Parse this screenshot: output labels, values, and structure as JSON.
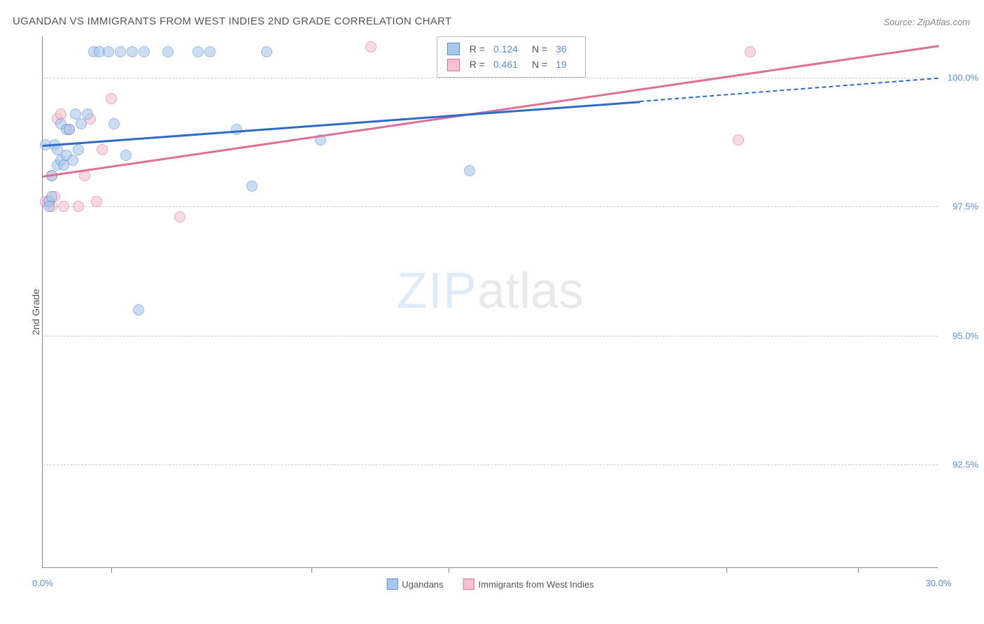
{
  "chart": {
    "type": "scatter",
    "title": "UGANDAN VS IMMIGRANTS FROM WEST INDIES 2ND GRADE CORRELATION CHART",
    "source": "Source: ZipAtlas.com",
    "y_axis_label": "2nd Grade",
    "background_color": "#ffffff",
    "grid_color": "#cccccc",
    "axis_color": "#888888",
    "text_color": "#555555",
    "tick_label_color": "#5b8dd6",
    "title_fontsize": 15,
    "label_fontsize": 14,
    "tick_fontsize": 13,
    "xlim": [
      0.0,
      30.0
    ],
    "ylim": [
      90.5,
      100.8
    ],
    "x_ticks": [
      0.0,
      30.0
    ],
    "x_tick_labels": [
      "0.0%",
      "30.0%"
    ],
    "x_minor_ticks": [
      2.3,
      9.0,
      13.6,
      22.9,
      27.3
    ],
    "y_ticks": [
      92.5,
      95.0,
      97.5,
      100.0
    ],
    "y_tick_labels": [
      "92.5%",
      "95.0%",
      "97.5%",
      "100.0%"
    ],
    "watermark": {
      "zip": "ZIP",
      "atlas": "atlas"
    },
    "series": [
      {
        "name": "Ugandans",
        "marker_color": "#a8c8ec",
        "marker_border": "#5b8dd6",
        "line_color": "#2e6bc7",
        "marker_size": 16,
        "R": "0.124",
        "N": "36",
        "trend": {
          "x1": 0.0,
          "y1": 98.7,
          "x2": 20.0,
          "y2": 99.55,
          "x2_dash": 30.0,
          "y2_dash": 100.0
        },
        "points": [
          [
            0.1,
            98.7
          ],
          [
            0.2,
            97.6
          ],
          [
            0.2,
            97.5
          ],
          [
            0.3,
            97.7
          ],
          [
            0.3,
            98.1
          ],
          [
            0.4,
            98.7
          ],
          [
            0.5,
            98.3
          ],
          [
            0.5,
            98.6
          ],
          [
            0.6,
            98.4
          ],
          [
            0.6,
            99.1
          ],
          [
            0.7,
            98.3
          ],
          [
            0.8,
            98.5
          ],
          [
            0.8,
            99.0
          ],
          [
            0.9,
            99.0
          ],
          [
            1.0,
            98.4
          ],
          [
            1.1,
            99.3
          ],
          [
            1.2,
            98.6
          ],
          [
            1.3,
            99.1
          ],
          [
            1.5,
            99.3
          ],
          [
            1.7,
            100.5
          ],
          [
            1.9,
            100.5
          ],
          [
            2.2,
            100.5
          ],
          [
            2.4,
            99.1
          ],
          [
            2.6,
            100.5
          ],
          [
            2.8,
            98.5
          ],
          [
            3.0,
            100.5
          ],
          [
            3.2,
            95.5
          ],
          [
            3.4,
            100.5
          ],
          [
            4.2,
            100.5
          ],
          [
            5.2,
            100.5
          ],
          [
            5.6,
            100.5
          ],
          [
            6.5,
            99.0
          ],
          [
            7.0,
            97.9
          ],
          [
            9.3,
            98.8
          ],
          [
            14.3,
            98.2
          ],
          [
            7.5,
            100.5
          ]
        ]
      },
      {
        "name": "Immigrants from West Indies",
        "marker_color": "#f4c2d0",
        "marker_border": "#e06f94",
        "line_color": "#e06f94",
        "marker_size": 16,
        "R": "0.461",
        "N": "19",
        "trend": {
          "x1": 0.0,
          "y1": 98.1,
          "x2": 30.0,
          "y2": 100.63
        },
        "points": [
          [
            0.1,
            97.6
          ],
          [
            0.2,
            97.6
          ],
          [
            0.3,
            97.5
          ],
          [
            0.3,
            98.1
          ],
          [
            0.4,
            97.7
          ],
          [
            0.5,
            99.2
          ],
          [
            0.6,
            99.3
          ],
          [
            0.7,
            97.5
          ],
          [
            0.9,
            99.0
          ],
          [
            1.2,
            97.5
          ],
          [
            1.4,
            98.1
          ],
          [
            1.6,
            99.2
          ],
          [
            1.8,
            97.6
          ],
          [
            2.0,
            98.6
          ],
          [
            2.3,
            99.6
          ],
          [
            4.6,
            97.3
          ],
          [
            11.0,
            100.6
          ],
          [
            23.3,
            98.8
          ],
          [
            23.7,
            100.5
          ]
        ]
      }
    ],
    "legend_bottom": [
      {
        "label": "Ugandans",
        "fill": "#a8c8ec",
        "border": "#5b8dd6"
      },
      {
        "label": "Immigrants from West Indies",
        "fill": "#f4c2d0",
        "border": "#e06f94"
      }
    ]
  }
}
